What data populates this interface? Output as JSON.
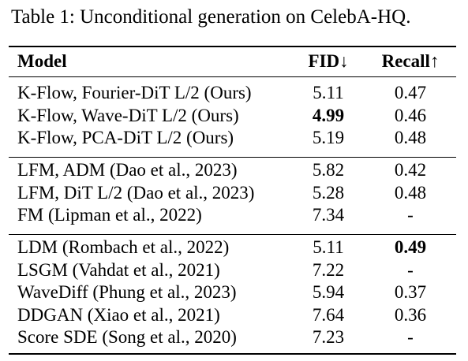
{
  "caption": "Table 1: Unconditional generation on CelebA-HQ.",
  "columns": {
    "model": "Model",
    "fid": "FID↓",
    "recall": "Recall↑"
  },
  "groups": [
    {
      "rows": [
        {
          "model": "K-Flow, Fourier-DiT L/2 (Ours)",
          "fid": "5.11",
          "recall": "0.47",
          "fid_bold": false,
          "recall_bold": false
        },
        {
          "model": "K-Flow, Wave-DiT L/2 (Ours)",
          "fid": "4.99",
          "recall": "0.46",
          "fid_bold": true,
          "recall_bold": false
        },
        {
          "model": "K-Flow, PCA-DiT L/2 (Ours)",
          "fid": "5.19",
          "recall": "0.48",
          "fid_bold": false,
          "recall_bold": false
        }
      ]
    },
    {
      "rows": [
        {
          "model": "LFM, ADM (Dao et al., 2023)",
          "fid": "5.82",
          "recall": "0.42",
          "fid_bold": false,
          "recall_bold": false
        },
        {
          "model": "LFM, DiT L/2 (Dao et al., 2023)",
          "fid": "5.28",
          "recall": "0.48",
          "fid_bold": false,
          "recall_bold": false
        },
        {
          "model": "FM (Lipman et al., 2022)",
          "fid": "7.34",
          "recall": "-",
          "fid_bold": false,
          "recall_bold": false
        }
      ]
    },
    {
      "rows": [
        {
          "model": "LDM (Rombach et al., 2022)",
          "fid": "5.11",
          "recall": "0.49",
          "fid_bold": false,
          "recall_bold": true
        },
        {
          "model": "LSGM (Vahdat et al., 2021)",
          "fid": "7.22",
          "recall": "-",
          "fid_bold": false,
          "recall_bold": false
        },
        {
          "model": "WaveDiff (Phung et al., 2023)",
          "fid": "5.94",
          "recall": "0.37",
          "fid_bold": false,
          "recall_bold": false
        },
        {
          "model": "DDGAN (Xiao et al., 2021)",
          "fid": "7.64",
          "recall": "0.36",
          "fid_bold": false,
          "recall_bold": false
        },
        {
          "model": "Score SDE (Song et al., 2020)",
          "fid": "7.23",
          "recall": "-",
          "fid_bold": false,
          "recall_bold": false
        }
      ]
    }
  ]
}
